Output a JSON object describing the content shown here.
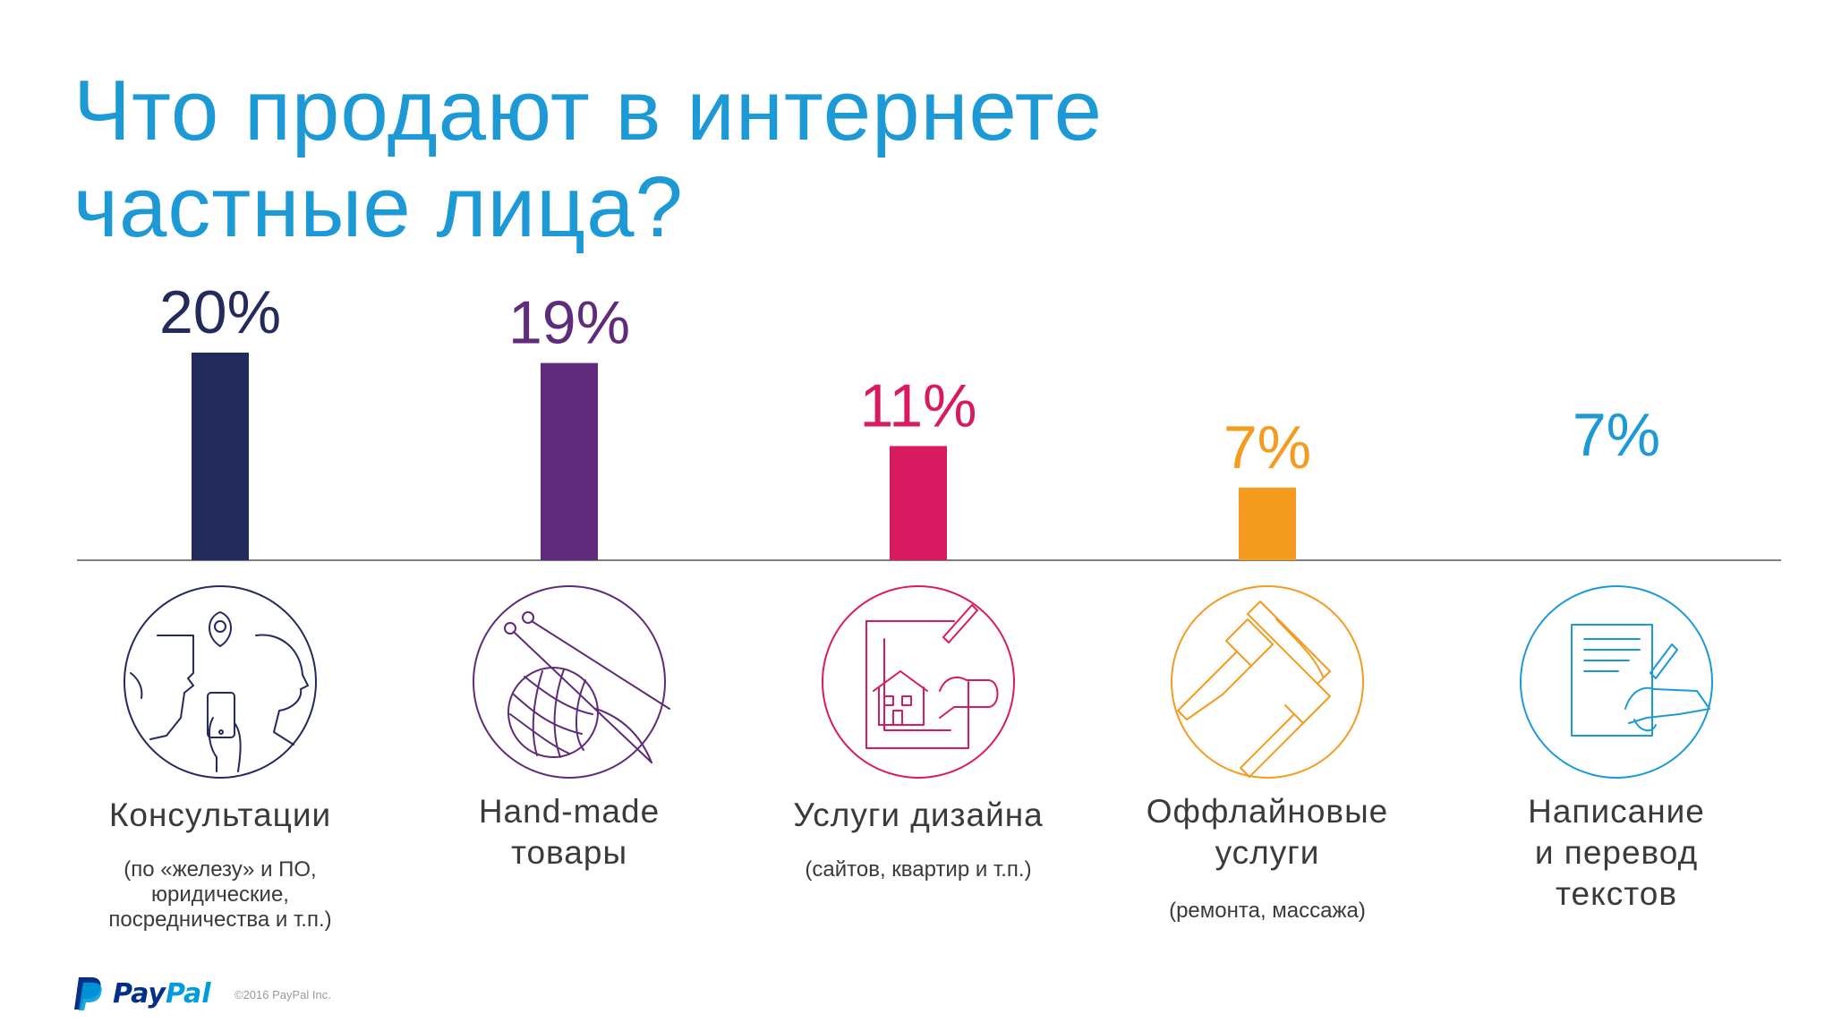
{
  "title": {
    "line1": "Что продают в интернете",
    "line2": "частные лица?"
  },
  "chart_data": {
    "type": "bar",
    "title": "Что продают в интернете частные лица?",
    "categories": [
      "Консультации",
      "Hand-made товары",
      "Услуги дизайна",
      "Оффлайновые услуги",
      "Написание и перевод текстов"
    ],
    "values": [
      20,
      19,
      11,
      7,
      7
    ],
    "value_labels": [
      "20%",
      "19%",
      "11%",
      "7%",
      "7%"
    ],
    "ylim": [
      0,
      20
    ],
    "colors": [
      "#232a5c",
      "#5f2b7a",
      "#d81b60",
      "#f39c1f",
      "#1d9ad6"
    ],
    "icons": [
      "people-phone-icon",
      "knitting-yarn-icon",
      "house-drawing-icon",
      "paint-roller-icon",
      "writing-hand-icon"
    ],
    "labels": [
      {
        "lines": [
          "Консультации"
        ],
        "sub": [
          "(по «железу» и ПО,",
          "юридические,",
          "посредничества и т.п.)"
        ]
      },
      {
        "lines": [
          "Hand-made",
          "товары"
        ],
        "sub": []
      },
      {
        "lines": [
          "Услуги дизайна"
        ],
        "sub": [
          "(сайтов, квартир и т.п.)"
        ]
      },
      {
        "lines": [
          "Оффлайновые",
          "услуги"
        ],
        "sub": [
          "(ремонта, массажа)"
        ]
      },
      {
        "lines": [
          "Написание",
          "и  перевод",
          "текстов"
        ],
        "sub": []
      }
    ]
  },
  "footer": {
    "logo_pay": "Pay",
    "logo_pal": "Pal",
    "copyright": "©2016 PayPal Inc."
  }
}
